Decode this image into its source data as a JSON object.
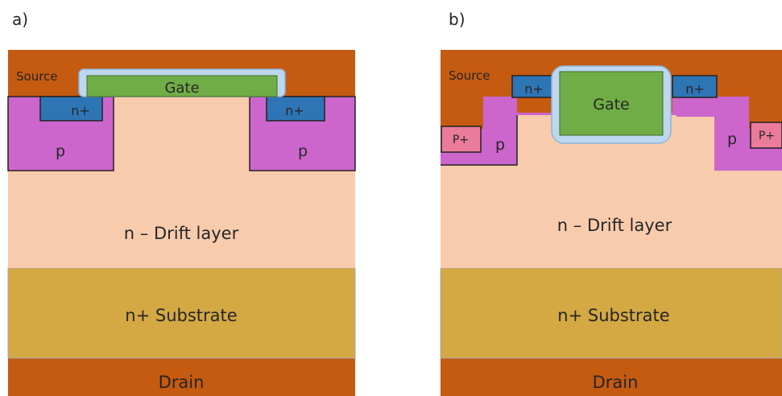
{
  "panels": [
    {
      "id": "a",
      "label": "a)",
      "layers": {
        "source": "Source",
        "gate": "Gate",
        "n_plus_left": "n+",
        "n_plus_right": "n+",
        "p_left": "p",
        "p_right": "p",
        "drift": "n – Drift layer",
        "substrate": "n+ Substrate",
        "drain": "Drain"
      }
    },
    {
      "id": "b",
      "label": "b)",
      "layers": {
        "source": "Source",
        "gate": "Gate",
        "n_plus_left": "n+",
        "n_plus_right": "n+",
        "p_plus_left": "P+",
        "p_plus_right": "P+",
        "p_left": "p",
        "p_right": "p",
        "drift": "n – Drift layer",
        "substrate": "n+ Substrate",
        "drain": "Drain"
      }
    }
  ],
  "colors": {
    "source_metal": "#c55a11",
    "gate": "#70ad47",
    "gate_oxide": "#bdd7ee",
    "n_plus": "#2e75b6",
    "p_body": "#cc66cc",
    "p_plus": "#ea7b9a",
    "drift": "#f8cbad",
    "substrate": "#d4a843",
    "drain": "#c55a11"
  }
}
